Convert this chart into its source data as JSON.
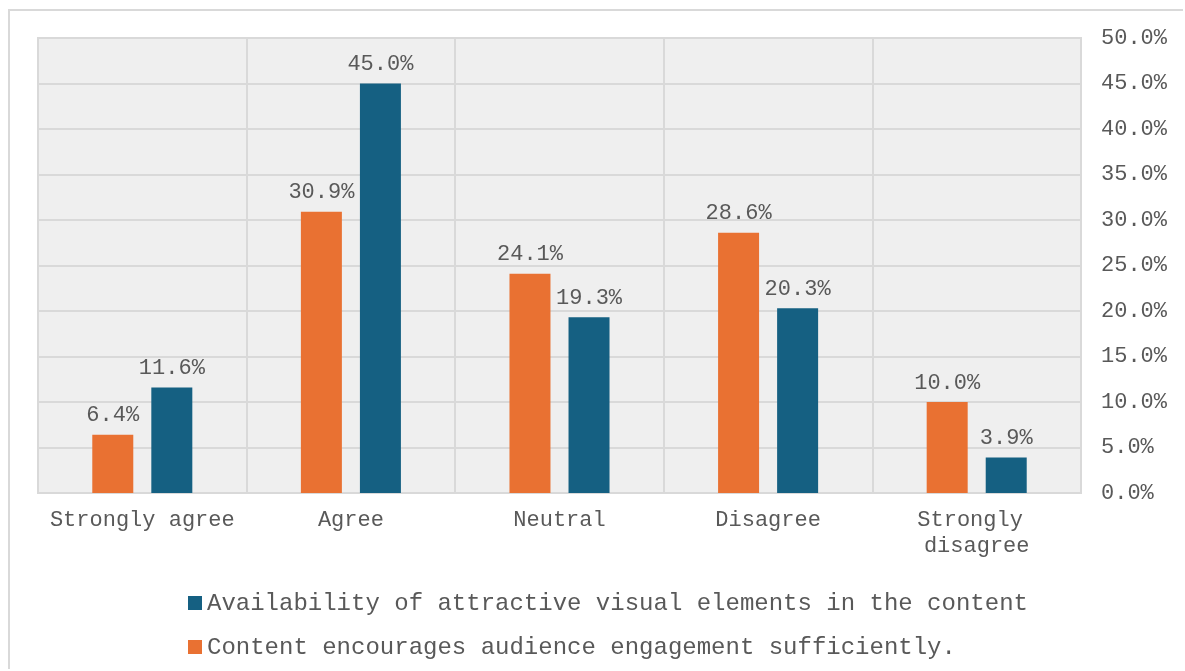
{
  "chart_data": {
    "type": "bar",
    "categories": [
      "Strongly agree",
      "Agree",
      "Neutral",
      "Disagree",
      "Strongly disagree"
    ],
    "series": [
      {
        "name": "Content encourages audience engagement sufficiently.",
        "color": "#e97132",
        "values": [
          6.4,
          30.9,
          24.1,
          28.6,
          10.0
        ],
        "value_labels": [
          "6.4%",
          "30.9%",
          "24.1%",
          "28.6%",
          "10.0%"
        ]
      },
      {
        "name": "Availability of attractive visual elements in the content",
        "color": "#156082",
        "values": [
          11.6,
          45.0,
          19.3,
          20.3,
          3.9
        ],
        "value_labels": [
          "11.6%",
          "45.0%",
          "19.3%",
          "20.3%",
          "3.9%"
        ]
      }
    ],
    "ylim": [
      0,
      50
    ],
    "yticks": [
      {
        "value": 0,
        "label": "0.0%"
      },
      {
        "value": 5,
        "label": "5.0%"
      },
      {
        "value": 10,
        "label": "10.0%"
      },
      {
        "value": 15,
        "label": "15.0%"
      },
      {
        "value": 20,
        "label": "20.0%"
      },
      {
        "value": 25,
        "label": "25.0%"
      },
      {
        "value": 30,
        "label": "30.0%"
      },
      {
        "value": 35,
        "label": "35.0%"
      },
      {
        "value": 40,
        "label": "40.0%"
      },
      {
        "value": 45,
        "label": "45.0%"
      },
      {
        "value": 50,
        "label": "50.0%"
      }
    ],
    "grid": true,
    "legend": "bottom"
  }
}
